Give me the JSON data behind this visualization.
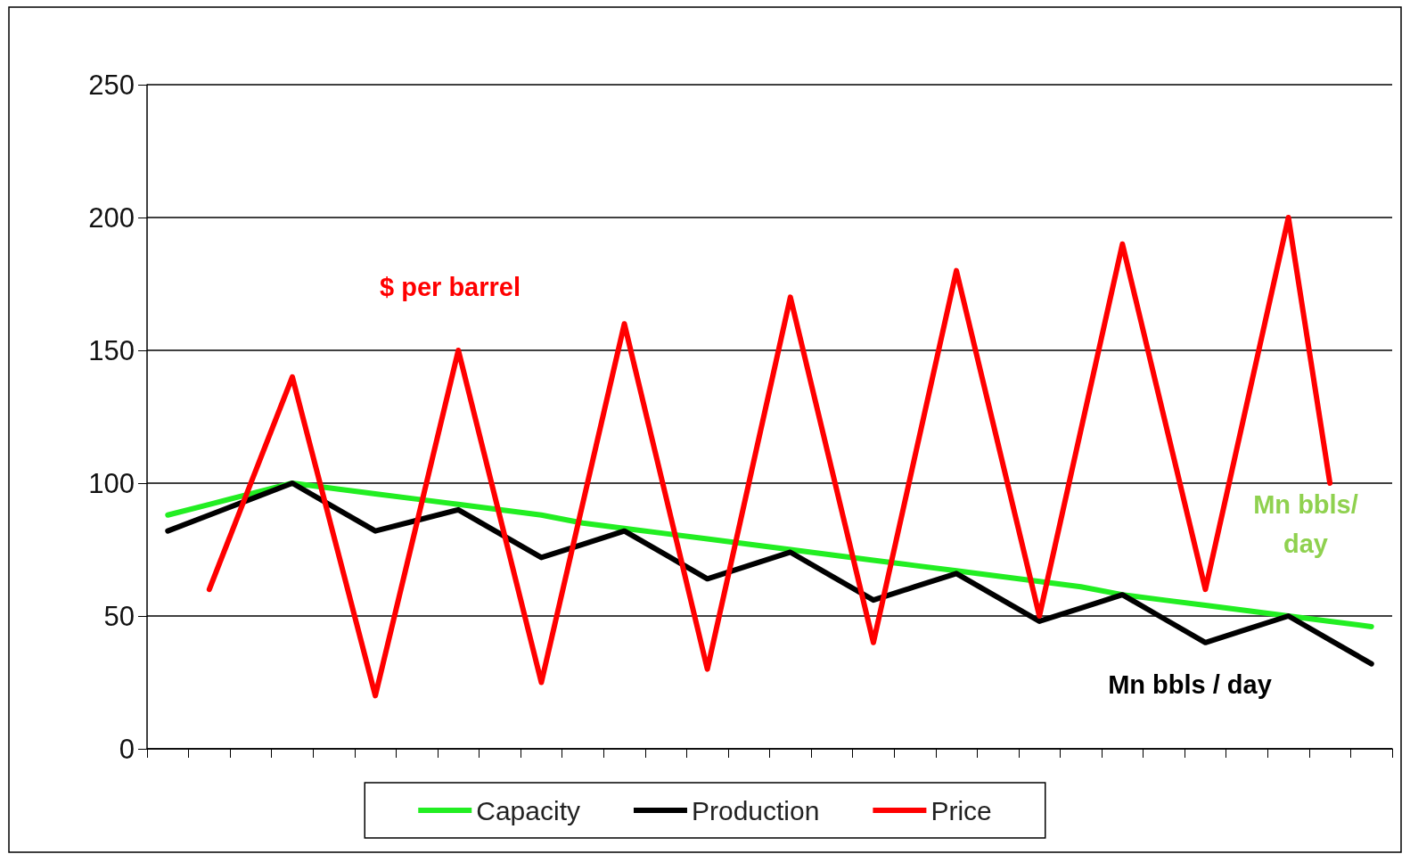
{
  "chart_data": {
    "type": "line",
    "categories": [
      null,
      null,
      null,
      null,
      null,
      null,
      null,
      null,
      null,
      null,
      null,
      null,
      null,
      null,
      null,
      null,
      null,
      null,
      null,
      null,
      null,
      null,
      null,
      null,
      null,
      null,
      null,
      null,
      null,
      null
    ],
    "series": [
      {
        "name": "Capacity",
        "color": "#22ee22",
        "values": [
          88,
          92,
          96,
          100,
          98,
          96,
          94,
          92,
          90,
          88,
          85,
          83,
          81,
          79,
          77,
          75,
          73,
          71,
          69,
          67,
          65,
          63,
          61,
          58,
          56,
          54,
          52,
          50,
          48,
          46
        ]
      },
      {
        "name": "Production",
        "color": "#000000",
        "values": [
          82,
          88,
          94,
          100,
          91,
          82,
          86,
          90,
          81,
          72,
          77,
          82,
          73,
          64,
          69,
          74,
          65,
          56,
          61,
          66,
          57,
          48,
          53,
          58,
          49,
          40,
          45,
          50,
          41,
          32
        ]
      },
      {
        "name": "Price",
        "color": "#ff0000",
        "values": [
          null,
          60,
          100,
          140,
          80,
          20,
          85,
          150,
          87.5,
          25,
          92.5,
          160,
          95,
          30,
          100,
          170,
          105,
          40,
          110,
          180,
          115,
          50,
          120,
          190,
          125,
          60,
          130,
          200,
          100,
          null
        ]
      }
    ],
    "ylim": [
      0,
      250
    ],
    "yticks": [
      0,
      50,
      100,
      150,
      200,
      250
    ],
    "grid": "y",
    "legend": "bottom",
    "marker": "none",
    "line_style": "solid",
    "annotations": [
      "Mn bbls/ day",
      "Mn bbls / day",
      "$ per barrel"
    ]
  }
}
